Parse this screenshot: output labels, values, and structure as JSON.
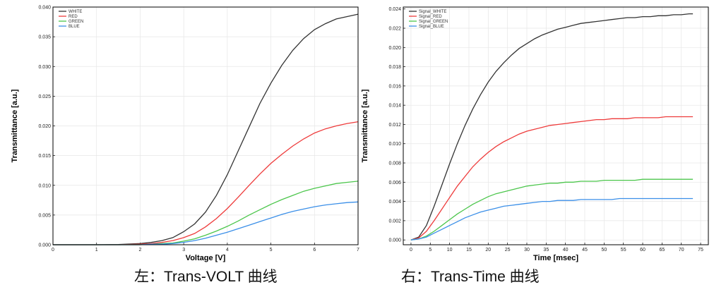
{
  "chart_data": [
    {
      "type": "line",
      "xlabel": "Voltage [V]",
      "ylabel": "Transmittance [a.u.]",
      "xlim": [
        0,
        7
      ],
      "ylim": [
        0,
        0.04
      ],
      "x_ticks": [
        0,
        1,
        2,
        3,
        4,
        5,
        6,
        7
      ],
      "y_ticks": [
        "0.000",
        "0.005",
        "0.010",
        "0.015",
        "0.020",
        "0.025",
        "0.030",
        "0.035",
        "0.040"
      ],
      "legend_position": "top-left",
      "caption": "左：Trans-VOLT 曲线",
      "x": [
        0,
        0.5,
        1,
        1.5,
        2,
        2.25,
        2.5,
        2.75,
        3,
        3.25,
        3.5,
        3.75,
        4,
        4.25,
        4.5,
        4.75,
        5,
        5.25,
        5.5,
        5.75,
        6,
        6.25,
        6.5,
        6.75,
        7
      ],
      "series": [
        {
          "name": "WHITE",
          "color": "#333333",
          "values": [
            0,
            0,
            0,
            5e-05,
            0.0002,
            0.0004,
            0.0007,
            0.0012,
            0.0022,
            0.0035,
            0.0055,
            0.0083,
            0.0118,
            0.0158,
            0.0198,
            0.0238,
            0.0272,
            0.0302,
            0.0327,
            0.0347,
            0.0362,
            0.0372,
            0.038,
            0.0384,
            0.0388
          ]
        },
        {
          "name": "RED",
          "color": "#ee3b3b",
          "values": [
            0,
            0,
            0,
            0,
            0.0001,
            0.0002,
            0.0004,
            0.0007,
            0.0012,
            0.0019,
            0.003,
            0.0044,
            0.0061,
            0.008,
            0.01,
            0.0119,
            0.0137,
            0.0152,
            0.0166,
            0.0178,
            0.0188,
            0.0195,
            0.02,
            0.0204,
            0.0207
          ]
        },
        {
          "name": "GREEN",
          "color": "#4cc64c",
          "values": [
            0,
            0,
            0,
            0,
            0,
            0.0001,
            0.0002,
            0.0003,
            0.0006,
            0.001,
            0.0016,
            0.0023,
            0.0031,
            0.004,
            0.005,
            0.0059,
            0.0068,
            0.0076,
            0.0083,
            0.009,
            0.0095,
            0.0099,
            0.0103,
            0.0105,
            0.0107
          ]
        },
        {
          "name": "BLUE",
          "color": "#3b8fe8",
          "values": [
            0,
            0,
            0,
            0,
            0,
            0.0001,
            0.0001,
            0.0002,
            0.0004,
            0.0007,
            0.0011,
            0.0016,
            0.0021,
            0.0027,
            0.0033,
            0.0039,
            0.0045,
            0.0051,
            0.0056,
            0.006,
            0.0064,
            0.0067,
            0.0069,
            0.0071,
            0.0072
          ]
        }
      ]
    },
    {
      "type": "line",
      "xlabel": "Time [msec]",
      "ylabel": "Transmittance [a.u.]",
      "xlim": [
        -2,
        77
      ],
      "ylim": [
        -0.0005,
        0.0242
      ],
      "x_ticks": [
        0,
        5,
        10,
        15,
        20,
        25,
        30,
        35,
        40,
        45,
        50,
        55,
        60,
        65,
        70,
        75
      ],
      "y_ticks": [
        "0.000",
        "0.002",
        "0.004",
        "0.006",
        "0.008",
        "0.010",
        "0.012",
        "0.014",
        "0.016",
        "0.018",
        "0.020",
        "0.022",
        "0.024"
      ],
      "legend_position": "top-left",
      "caption": "右：Trans-Time 曲线",
      "x": [
        0,
        2,
        4,
        6,
        8,
        10,
        12,
        14,
        16,
        18,
        20,
        22,
        24,
        26,
        28,
        30,
        32,
        34,
        36,
        38,
        40,
        42,
        44,
        46,
        48,
        50,
        52,
        54,
        56,
        58,
        60,
        62,
        64,
        66,
        68,
        70,
        72,
        73
      ],
      "series": [
        {
          "name": "Signal_WHITE",
          "color": "#333333",
          "values": [
            0,
            0.0003,
            0.0015,
            0.0035,
            0.0057,
            0.0079,
            0.01,
            0.0119,
            0.0136,
            0.0151,
            0.0164,
            0.0175,
            0.0184,
            0.0192,
            0.0199,
            0.0204,
            0.0209,
            0.0213,
            0.0216,
            0.0219,
            0.0221,
            0.0223,
            0.0225,
            0.0226,
            0.0227,
            0.0228,
            0.0229,
            0.023,
            0.0231,
            0.0231,
            0.0232,
            0.0232,
            0.0233,
            0.0233,
            0.0234,
            0.0234,
            0.0235,
            0.0235
          ]
        },
        {
          "name": "Signal_RED",
          "color": "#ee3b3b",
          "values": [
            0,
            0.0002,
            0.0009,
            0.002,
            0.0032,
            0.0044,
            0.0056,
            0.0066,
            0.0076,
            0.0084,
            0.0091,
            0.0097,
            0.0102,
            0.0106,
            0.011,
            0.0113,
            0.0115,
            0.0117,
            0.0119,
            0.012,
            0.0121,
            0.0122,
            0.0123,
            0.0124,
            0.0125,
            0.0125,
            0.0126,
            0.0126,
            0.0126,
            0.0127,
            0.0127,
            0.0127,
            0.0127,
            0.0128,
            0.0128,
            0.0128,
            0.0128,
            0.0128
          ]
        },
        {
          "name": "Signal_GREEN",
          "color": "#4cc64c",
          "values": [
            0,
            0.0001,
            0.0004,
            0.0009,
            0.0015,
            0.0021,
            0.0027,
            0.0032,
            0.0037,
            0.0041,
            0.0045,
            0.0048,
            0.005,
            0.0052,
            0.0054,
            0.0056,
            0.0057,
            0.0058,
            0.0059,
            0.0059,
            0.006,
            0.006,
            0.0061,
            0.0061,
            0.0061,
            0.0062,
            0.0062,
            0.0062,
            0.0062,
            0.0062,
            0.0063,
            0.0063,
            0.0063,
            0.0063,
            0.0063,
            0.0063,
            0.0063,
            0.0063
          ]
        },
        {
          "name": "Signal_BLUE",
          "color": "#3b8fe8",
          "values": [
            0,
            0.0001,
            0.0003,
            0.0007,
            0.0011,
            0.0015,
            0.0019,
            0.0023,
            0.0026,
            0.0029,
            0.0031,
            0.0033,
            0.0035,
            0.0036,
            0.0037,
            0.0038,
            0.0039,
            0.004,
            0.004,
            0.0041,
            0.0041,
            0.0041,
            0.0042,
            0.0042,
            0.0042,
            0.0042,
            0.0042,
            0.0043,
            0.0043,
            0.0043,
            0.0043,
            0.0043,
            0.0043,
            0.0043,
            0.0043,
            0.0043,
            0.0043,
            0.0043
          ]
        }
      ]
    }
  ]
}
